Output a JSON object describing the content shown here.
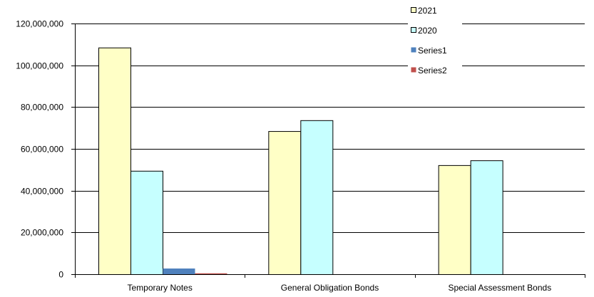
{
  "chart_data": {
    "type": "bar",
    "categories": [
      "Temporary Notes",
      "General Obligation Bonds",
      "Special Assessment Bonds"
    ],
    "series": [
      {
        "name": "2021",
        "values": [
          108500000,
          68500000,
          52200000
        ],
        "color": "#ffffc6",
        "stroke": "#000000"
      },
      {
        "name": "2020",
        "values": [
          49500000,
          73700000,
          54500000
        ],
        "color": "#c6ffff",
        "stroke": "#000000"
      },
      {
        "name": "Series1",
        "values": [
          2900000,
          0,
          0
        ],
        "color": "#4f81bd",
        "stroke": "none"
      },
      {
        "name": "Series2",
        "values": [
          600000,
          0,
          0
        ],
        "color": "#c0504d",
        "stroke": "none"
      }
    ],
    "yticks": [
      "0",
      "20,000,000",
      "40,000,000",
      "60,000,000",
      "80,000,000",
      "100,000,000",
      "120,000,000"
    ],
    "ylim": [
      0,
      120000000
    ],
    "grid": true,
    "legend": "top-right"
  }
}
